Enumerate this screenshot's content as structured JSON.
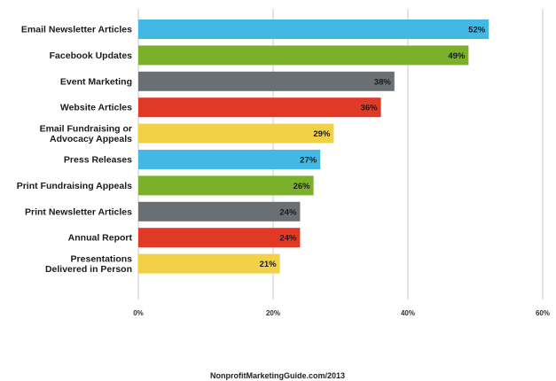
{
  "chart_data": {
    "type": "bar",
    "orientation": "horizontal",
    "title": "",
    "xlabel": "",
    "ylabel": "",
    "categories": [
      "Email Newsletter Articles",
      "Facebook Updates",
      "Event Marketing",
      "Website Articles",
      "Email Fundraising or Advocacy Appeals",
      "Press Releases",
      "Print Fundraising Appeals",
      "Print Newsletter Articles",
      "Annual Report",
      "Presentations Delivered in Person"
    ],
    "category_lines": [
      [
        "Email Newsletter Articles"
      ],
      [
        "Facebook Updates"
      ],
      [
        "Event Marketing"
      ],
      [
        "Website Articles"
      ],
      [
        "Email Fundraising or",
        "Advocacy Appeals"
      ],
      [
        "Press Releases"
      ],
      [
        "Print Fundraising Appeals"
      ],
      [
        "Print Newsletter Articles"
      ],
      [
        "Annual Report"
      ],
      [
        "Presentations",
        "Delivered in Person"
      ]
    ],
    "values": [
      52,
      49,
      38,
      36,
      29,
      27,
      26,
      24,
      24,
      21
    ],
    "value_labels": [
      "52%",
      "49%",
      "38%",
      "36%",
      "29%",
      "27%",
      "26%",
      "24%",
      "24%",
      "21%"
    ],
    "bar_colors": [
      "#44b8e4",
      "#7bb02a",
      "#6a6f73",
      "#e03a26",
      "#f1d246",
      "#44b8e4",
      "#7bb02a",
      "#6a6f73",
      "#e03a26",
      "#f1d246"
    ],
    "xlim": [
      0,
      60
    ],
    "xticks": [
      0,
      20,
      40,
      60
    ],
    "xtick_labels": [
      "0%",
      "20%",
      "40%",
      "60%"
    ],
    "grid": true,
    "source": "NonprofitMarketingGuide.com/2013"
  }
}
